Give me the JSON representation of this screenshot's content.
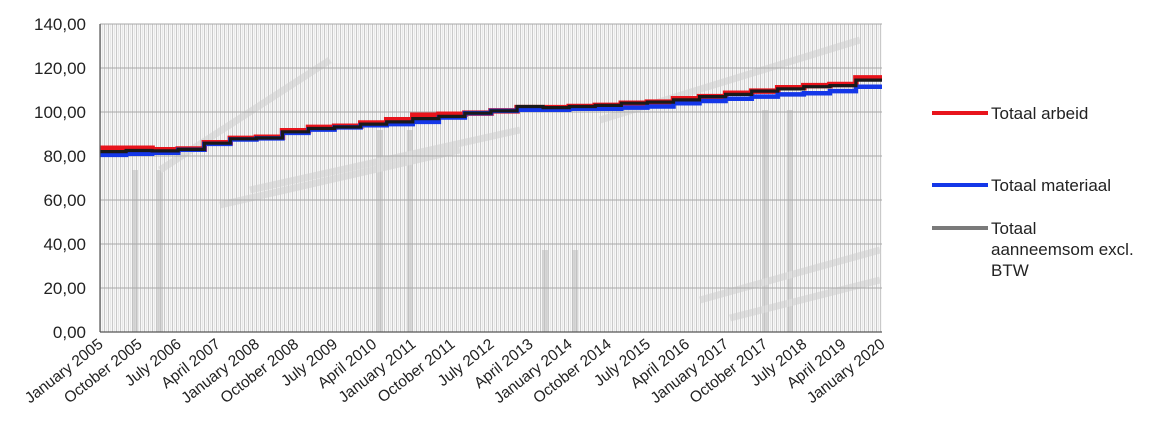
{
  "chart_data": {
    "type": "line",
    "title": "",
    "xlabel": "",
    "ylabel": "",
    "ylim": [
      0,
      140
    ],
    "yticks": [
      "0,00",
      "20,00",
      "40,00",
      "60,00",
      "80,00",
      "100,00",
      "120,00",
      "140,00"
    ],
    "xlim": [
      2005.0,
      2020.0
    ],
    "xtick_labels": [
      "January 2005",
      "October 2005",
      "July 2006",
      "April 2007",
      "January 2008",
      "October 2008",
      "July 2009",
      "April 2010",
      "January 2011",
      "October 2011",
      "July 2012",
      "April 2013",
      "January 2014",
      "October 2014",
      "July 2015",
      "April 2016",
      "January 2017",
      "October 2017",
      "July 2018",
      "April 2019",
      "January 2020"
    ],
    "grid": true,
    "legend_position": "right",
    "series": [
      {
        "name": "Totaal arbeid",
        "color": "#e8141c",
        "points": [
          [
            2005.0,
            83.5
          ],
          [
            2005.5,
            83.5
          ],
          [
            2006.0,
            82.8
          ],
          [
            2006.5,
            83.2
          ],
          [
            2007.0,
            86.0
          ],
          [
            2007.5,
            88.0
          ],
          [
            2008.0,
            88.5
          ],
          [
            2008.5,
            91.5
          ],
          [
            2009.0,
            93.0
          ],
          [
            2009.5,
            93.5
          ],
          [
            2010.0,
            95.0
          ],
          [
            2010.5,
            96.5
          ],
          [
            2011.0,
            98.5
          ],
          [
            2011.5,
            99.0
          ],
          [
            2012.0,
            99.5
          ],
          [
            2012.5,
            100.5
          ],
          [
            2013.0,
            102.0
          ],
          [
            2013.5,
            102.0
          ],
          [
            2014.0,
            102.5
          ],
          [
            2014.5,
            103.0
          ],
          [
            2015.0,
            104.0
          ],
          [
            2015.5,
            104.5
          ],
          [
            2016.0,
            106.0
          ],
          [
            2016.5,
            107.0
          ],
          [
            2017.0,
            108.5
          ],
          [
            2017.5,
            109.5
          ],
          [
            2018.0,
            111.0
          ],
          [
            2018.5,
            112.0
          ],
          [
            2019.0,
            112.5
          ],
          [
            2019.5,
            115.5
          ],
          [
            2020.0,
            115.5
          ]
        ]
      },
      {
        "name": "Totaal materiaal",
        "color": "#1437e8",
        "points": [
          [
            2005.0,
            80.5
          ],
          [
            2005.5,
            81.0
          ],
          [
            2006.0,
            81.5
          ],
          [
            2006.5,
            82.8
          ],
          [
            2007.0,
            85.5
          ],
          [
            2007.5,
            87.5
          ],
          [
            2008.0,
            88.0
          ],
          [
            2008.5,
            90.5
          ],
          [
            2009.0,
            92.0
          ],
          [
            2009.5,
            93.0
          ],
          [
            2010.0,
            94.0
          ],
          [
            2010.5,
            94.5
          ],
          [
            2011.0,
            95.5
          ],
          [
            2011.5,
            97.5
          ],
          [
            2012.0,
            99.5
          ],
          [
            2012.5,
            100.5
          ],
          [
            2013.0,
            101.0
          ],
          [
            2013.5,
            101.0
          ],
          [
            2014.0,
            101.5
          ],
          [
            2014.5,
            101.5
          ],
          [
            2015.0,
            102.0
          ],
          [
            2015.5,
            102.5
          ],
          [
            2016.0,
            104.0
          ],
          [
            2016.5,
            105.0
          ],
          [
            2017.0,
            106.0
          ],
          [
            2017.5,
            107.0
          ],
          [
            2018.0,
            108.0
          ],
          [
            2018.5,
            108.5
          ],
          [
            2019.0,
            109.5
          ],
          [
            2019.5,
            111.5
          ],
          [
            2020.0,
            111.5
          ]
        ]
      },
      {
        "name": "Totaal aanneemsom excl. BTW",
        "color": "#1a1a1a",
        "points": [
          [
            2005.0,
            82.0
          ],
          [
            2005.5,
            82.5
          ],
          [
            2006.0,
            82.3
          ],
          [
            2006.5,
            83.0
          ],
          [
            2007.0,
            85.8
          ],
          [
            2007.5,
            87.8
          ],
          [
            2008.0,
            88.2
          ],
          [
            2008.5,
            91.0
          ],
          [
            2009.0,
            92.5
          ],
          [
            2009.5,
            93.2
          ],
          [
            2010.0,
            94.5
          ],
          [
            2010.5,
            95.5
          ],
          [
            2011.0,
            97.0
          ],
          [
            2011.5,
            98.0
          ],
          [
            2012.0,
            99.5
          ],
          [
            2012.5,
            100.5
          ],
          [
            2013.0,
            102.5
          ],
          [
            2013.5,
            102.0
          ],
          [
            2014.0,
            102.5
          ],
          [
            2014.5,
            103.0
          ],
          [
            2015.0,
            104.0
          ],
          [
            2015.5,
            104.5
          ],
          [
            2016.0,
            105.5
          ],
          [
            2016.5,
            107.0
          ],
          [
            2017.0,
            108.0
          ],
          [
            2017.5,
            109.5
          ],
          [
            2018.0,
            110.5
          ],
          [
            2018.5,
            111.5
          ],
          [
            2019.0,
            112.0
          ],
          [
            2019.5,
            114.5
          ],
          [
            2020.0,
            114.5
          ]
        ]
      }
    ],
    "legend": [
      {
        "label_lines": [
          "Totaal arbeid"
        ],
        "color": "#e8141c"
      },
      {
        "label_lines": [
          "Totaal materiaal"
        ],
        "color": "#1437e8"
      },
      {
        "label_lines": [
          "Totaal",
          "aanneemsom excl.",
          "BTW"
        ],
        "color": "#7a7a7a"
      }
    ]
  }
}
